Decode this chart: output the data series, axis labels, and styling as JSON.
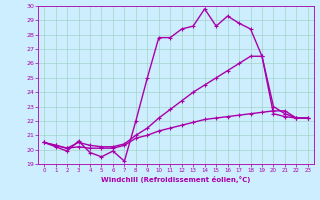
{
  "title": "",
  "xlabel": "Windchill (Refroidissement éolien,°C)",
  "xlim": [
    -0.5,
    23.5
  ],
  "ylim": [
    19,
    30
  ],
  "yticks": [
    19,
    20,
    21,
    22,
    23,
    24,
    25,
    26,
    27,
    28,
    29,
    30
  ],
  "xticks": [
    0,
    1,
    2,
    3,
    4,
    5,
    6,
    7,
    8,
    9,
    10,
    11,
    12,
    13,
    14,
    15,
    16,
    17,
    18,
    19,
    20,
    21,
    22,
    23
  ],
  "bg_color": "#cceeff",
  "grid_color": "#99ccbb",
  "line_color": "#aa00aa",
  "line_width": 1.0,
  "marker": "+",
  "marker_size": 3,
  "series": [
    [
      20.5,
      20.2,
      19.9,
      20.6,
      19.8,
      19.5,
      19.9,
      19.2,
      22.0,
      25.0,
      27.8,
      27.8,
      28.4,
      28.6,
      29.8,
      28.6,
      29.3,
      28.8,
      28.4,
      26.5,
      23.0,
      22.5,
      22.2,
      22.2
    ],
    [
      20.5,
      20.3,
      20.1,
      20.5,
      20.3,
      20.2,
      20.2,
      20.4,
      21.0,
      21.5,
      22.2,
      22.8,
      23.4,
      24.0,
      24.5,
      25.0,
      25.5,
      26.0,
      26.5,
      26.5,
      22.5,
      22.3,
      22.2,
      22.2
    ],
    [
      20.5,
      20.3,
      20.1,
      20.2,
      20.1,
      20.1,
      20.1,
      20.3,
      20.8,
      21.0,
      21.3,
      21.5,
      21.7,
      21.9,
      22.1,
      22.2,
      22.3,
      22.4,
      22.5,
      22.6,
      22.7,
      22.7,
      22.2,
      22.2
    ]
  ]
}
